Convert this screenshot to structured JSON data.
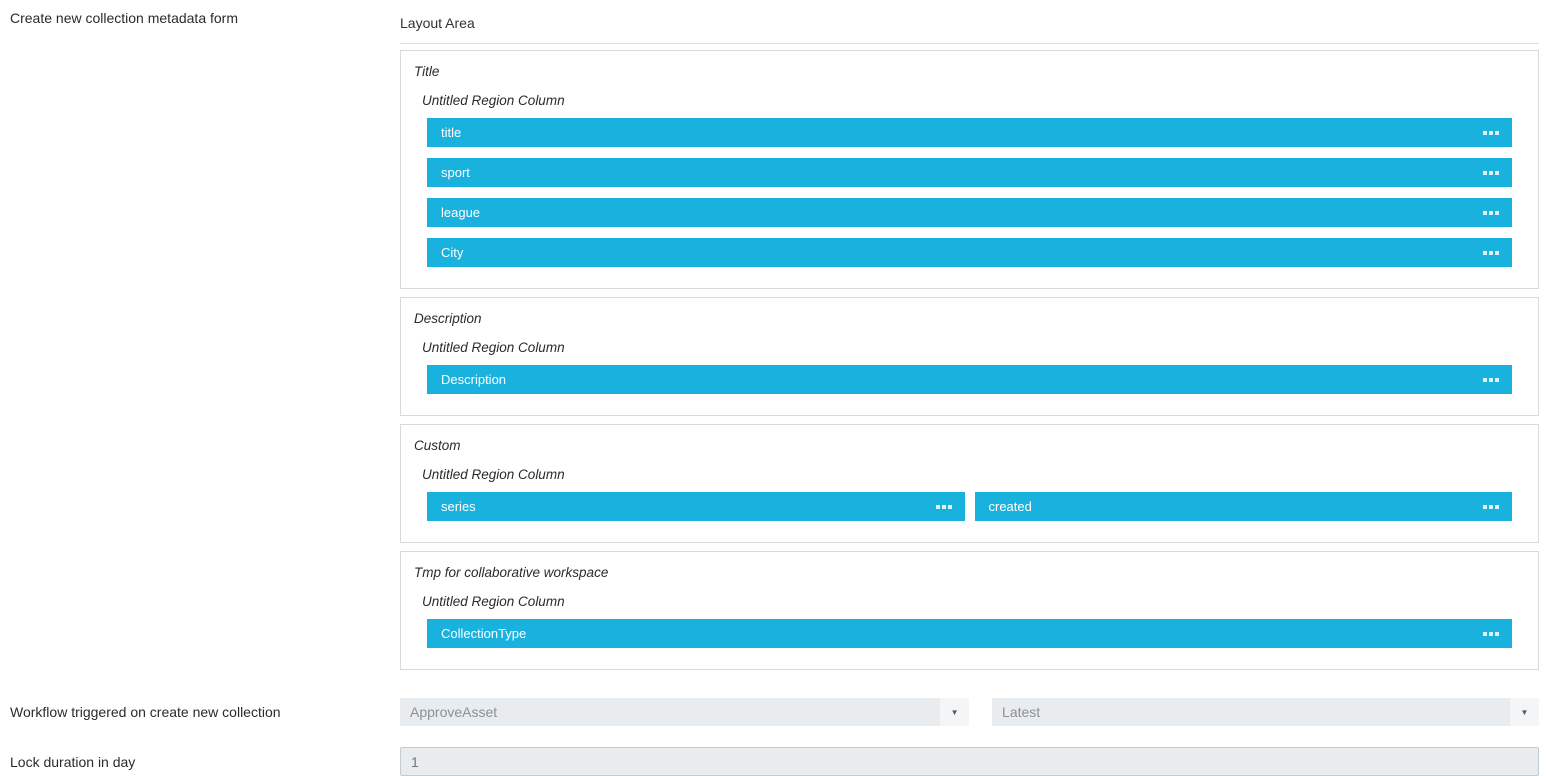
{
  "page": {
    "form_label": "Create new collection metadata form",
    "layout_area_title": "Layout Area"
  },
  "layout_area": {
    "groups": [
      {
        "title": "Title",
        "column_label": "Untitled Region Column",
        "rows": [
          [
            "title"
          ],
          [
            "sport"
          ],
          [
            "league"
          ],
          [
            "City"
          ]
        ]
      },
      {
        "title": "Description",
        "column_label": "Untitled Region Column",
        "rows": [
          [
            "Description"
          ]
        ]
      },
      {
        "title": "Custom",
        "column_label": "Untitled Region Column",
        "rows": [
          [
            "series",
            "created"
          ]
        ]
      },
      {
        "title": "Tmp for collaborative workspace",
        "column_label": "Untitled Region Column",
        "rows": [
          [
            "CollectionType"
          ]
        ]
      }
    ]
  },
  "workflow": {
    "label": "Workflow triggered on create new collection",
    "dropdown1_value": "ApproveAsset",
    "dropdown2_value": "Latest"
  },
  "lock": {
    "label": "Lock duration in day",
    "value": "1"
  },
  "colors": {
    "accent_field_blue": "#19b2df",
    "control_background": "#e8ecef",
    "group_border": "#d9d9d9"
  }
}
